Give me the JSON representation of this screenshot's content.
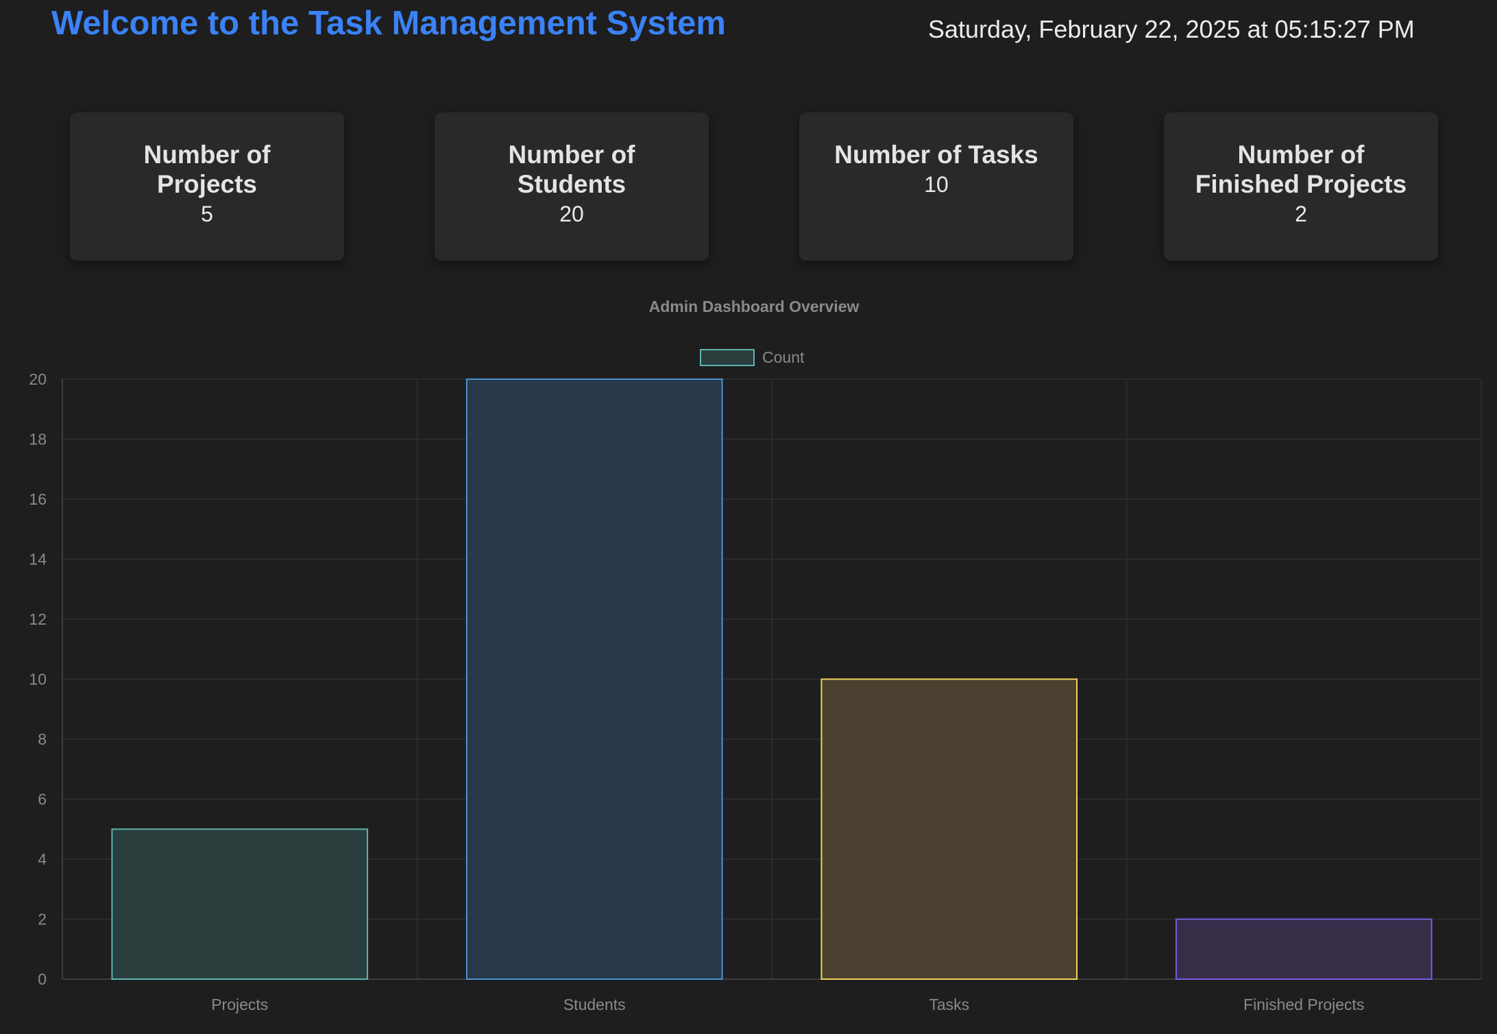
{
  "header": {
    "welcome": "Welcome to the Task Management System",
    "datetime": "Saturday, February 22, 2025 at 05:15:27 PM"
  },
  "stats": [
    {
      "label": "Number of Projects",
      "value": "5"
    },
    {
      "label": "Number of Students",
      "value": "20"
    },
    {
      "label": "Number of Tasks",
      "value": "10"
    },
    {
      "label": "Number of Finished Projects",
      "value": "2"
    }
  ],
  "colors": {
    "background": "#1e1e1e",
    "card": "#292929",
    "accent": "#3b82f6"
  },
  "chart_data": {
    "type": "bar",
    "title": "Admin Dashboard Overview",
    "categories": [
      "Projects",
      "Students",
      "Tasks",
      "Finished Projects"
    ],
    "series": [
      {
        "name": "Count",
        "values": [
          5,
          20,
          10,
          2
        ]
      }
    ],
    "ylim": [
      0,
      20
    ],
    "yticks": [
      "0",
      "2",
      "4",
      "6",
      "8",
      "10",
      "12",
      "14",
      "16",
      "18",
      "20"
    ],
    "grid": true,
    "legend": "top-center",
    "bar_fill_colors": [
      "#2b3e3e",
      "#263849",
      "#4a4130",
      "#362d49"
    ],
    "bar_border_colors": [
      "#5fb3b0",
      "#4b93d6",
      "#f3d35e",
      "#7a5fe0"
    ]
  }
}
